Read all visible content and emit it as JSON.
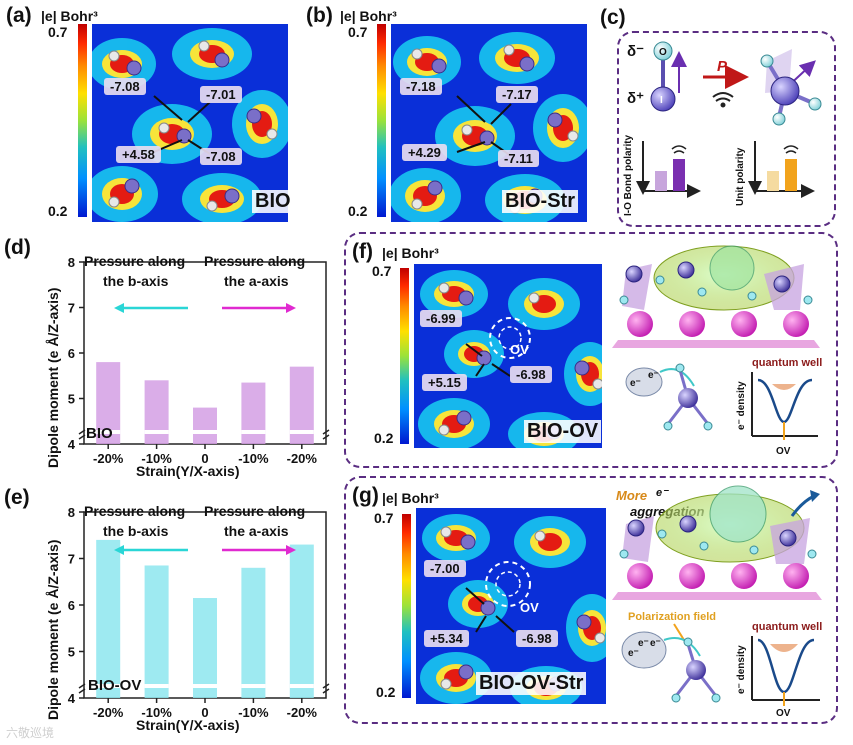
{
  "colorbar": {
    "unit": "|e| Bohr³",
    "max": "0.7",
    "min": "0.2"
  },
  "panel_a": {
    "label": "(a)",
    "tag": "BIO",
    "values": [
      "-7.08",
      "-7.01",
      "+4.58",
      "-7.08"
    ]
  },
  "panel_b": {
    "label": "(b)",
    "tag": "BIO-Str",
    "values": [
      "-7.18",
      "-7.17",
      "+4.29",
      "-7.11"
    ]
  },
  "panel_c": {
    "label": "(c)",
    "delta_minus": "δ⁻",
    "delta_plus": "δ⁺",
    "atom_o": "O",
    "atom_i": "I",
    "arrow_label": "P",
    "bar_left_label": "I-O Bond polarity",
    "bar_right_label": "Unit polarity"
  },
  "panel_f": {
    "label": "(f)",
    "tag": "BIO-OV",
    "ov": "OV",
    "values": [
      "-6.99",
      "+5.15",
      "-6.98"
    ],
    "quantum_well": "quantum well",
    "e_density": "e⁻ density",
    "ov_axis": "OV",
    "e1": "e⁻",
    "e2": "e⁻"
  },
  "panel_g": {
    "label": "(g)",
    "tag": "BIO-OV-Str",
    "ov": "OV",
    "values": [
      "-7.00",
      "+5.34",
      "-6.98"
    ],
    "quantum_well": "quantum well",
    "e_density": "e⁻ density",
    "ov_axis": "OV",
    "more": "More",
    "more_sup": "e⁻",
    "aggregation": "aggregation",
    "polarization": "Polarization field",
    "e1": "e⁻",
    "e2": "e⁻",
    "e3": "e⁻"
  },
  "chart_data": [
    {
      "type": "bar",
      "panel": "(d)",
      "tag": "BIO",
      "categories": [
        "-20%",
        "-10%",
        "0",
        "-10%",
        "-20%"
      ],
      "values": [
        5.8,
        5.4,
        4.8,
        5.35,
        5.7
      ],
      "ylabel": "Dipole moment (e Å/Z-axis)",
      "xlabel": "Strain(Y/X-axis)",
      "ylim": [
        4,
        8
      ],
      "yticks": [
        "4",
        "5",
        "6",
        "7",
        "8"
      ],
      "left_note": [
        "Pressure along",
        "the b-axis"
      ],
      "right_note": [
        "Pressure along",
        "the a-axis"
      ],
      "bar_color": "#d49fe4",
      "left_arrow_color": "#2ad6d6",
      "right_arrow_color": "#e02ad0"
    },
    {
      "type": "bar",
      "panel": "(e)",
      "tag": "BIO-OV",
      "categories": [
        "-20%",
        "-10%",
        "0",
        "-10%",
        "-20%"
      ],
      "values": [
        7.4,
        6.85,
        6.15,
        6.8,
        7.3
      ],
      "ylabel": "Dipole moment (e Å/Z-axis)",
      "xlabel": "Strain(Y/X-axis)",
      "ylim": [
        4,
        8
      ],
      "yticks": [
        "4",
        "5",
        "6",
        "7",
        "8"
      ],
      "left_note": [
        "Pressure along",
        "the b-axis"
      ],
      "right_note": [
        "Pressure along",
        "the a-axis"
      ],
      "bar_color": "#8de6ee",
      "left_arrow_color": "#2ad6d6",
      "right_arrow_color": "#e02ad0"
    }
  ],
  "watermark": "六敬巡境"
}
